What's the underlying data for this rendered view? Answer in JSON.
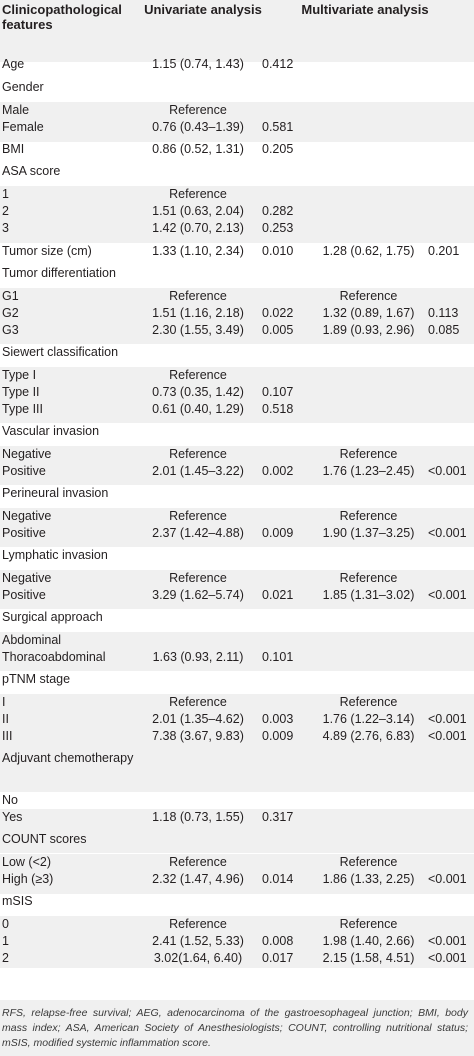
{
  "header": {
    "feature": "Clinicopathological features",
    "univariate": "Univariate analysis",
    "multivariate": "Multivariate analysis"
  },
  "rows": [
    {
      "label": "Age",
      "or1": "1.15 (0.74, 1.43)",
      "p1": "0.412",
      "or2": "",
      "p2": ""
    },
    {
      "label": "Gender",
      "or1": "",
      "p1": "",
      "or2": "",
      "p2": ""
    },
    {
      "label": "Male",
      "or1": "Reference",
      "p1": "",
      "or2": "",
      "p2": ""
    },
    {
      "label": "Female",
      "or1": "0.76 (0.43–1.39)",
      "p1": "0.581",
      "or2": "",
      "p2": ""
    },
    {
      "label": "BMI",
      "or1": "0.86 (0.52, 1.31)",
      "p1": "0.205",
      "or2": "",
      "p2": ""
    },
    {
      "label": "ASA score",
      "or1": "",
      "p1": "",
      "or2": "",
      "p2": ""
    },
    {
      "label": "1",
      "or1": "Reference",
      "p1": "",
      "or2": "",
      "p2": ""
    },
    {
      "label": "2",
      "or1": "1.51 (0.63, 2.04)",
      "p1": "0.282",
      "or2": "",
      "p2": ""
    },
    {
      "label": "3",
      "or1": "1.42 (0.70, 2.13)",
      "p1": "0.253",
      "or2": "",
      "p2": ""
    },
    {
      "label": "Tumor size (cm)",
      "or1": "1.33 (1.10, 2.34)",
      "p1": "0.010",
      "or2": "1.28 (0.62, 1.75)",
      "p2": "0.201"
    },
    {
      "label": "Tumor differentiation",
      "or1": "",
      "p1": "",
      "or2": "",
      "p2": ""
    },
    {
      "label": "G1",
      "or1": "Reference",
      "p1": "",
      "or2": "Reference",
      "p2": ""
    },
    {
      "label": "G2",
      "or1": "1.51 (1.16, 2.18)",
      "p1": "0.022",
      "or2": "1.32 (0.89, 1.67)",
      "p2": "0.113"
    },
    {
      "label": "G3",
      "or1": "2.30 (1.55, 3.49)",
      "p1": "0.005",
      "or2": "1.89 (0.93, 2.96)",
      "p2": "0.085"
    },
    {
      "label": "Siewert classification",
      "or1": "",
      "p1": "",
      "or2": "",
      "p2": ""
    },
    {
      "label": "Type I",
      "or1": "Reference",
      "p1": "",
      "or2": "",
      "p2": ""
    },
    {
      "label": "Type II",
      "or1": "0.73 (0.35, 1.42)",
      "p1": "0.107",
      "or2": "",
      "p2": ""
    },
    {
      "label": "Type III",
      "or1": "0.61 (0.40, 1.29)",
      "p1": "0.518",
      "or2": "",
      "p2": ""
    },
    {
      "label": "Vascular invasion",
      "or1": "",
      "p1": "",
      "or2": "",
      "p2": ""
    },
    {
      "label": "Negative",
      "or1": "Reference",
      "p1": "",
      "or2": "Reference",
      "p2": ""
    },
    {
      "label": "Positive",
      "or1": "2.01 (1.45–3.22)",
      "p1": "0.002",
      "or2": "1.76 (1.23–2.45)",
      "p2": "<0.001"
    },
    {
      "label": "Perineural invasion",
      "or1": "",
      "p1": "",
      "or2": "",
      "p2": ""
    },
    {
      "label": "Negative",
      "or1": "Reference",
      "p1": "",
      "or2": "Reference",
      "p2": ""
    },
    {
      "label": "Positive",
      "or1": "2.37 (1.42–4.88)",
      "p1": "0.009",
      "or2": "1.90 (1.37–3.25)",
      "p2": "<0.001"
    },
    {
      "label": "Lymphatic invasion",
      "or1": "",
      "p1": "",
      "or2": "",
      "p2": ""
    },
    {
      "label": "Negative",
      "or1": "Reference",
      "p1": "",
      "or2": "Reference",
      "p2": ""
    },
    {
      "label": "Positive",
      "or1": "3.29 (1.62–5.74)",
      "p1": "0.021",
      "or2": "1.85 (1.31–3.02)",
      "p2": "<0.001"
    },
    {
      "label": "Surgical approach",
      "or1": "",
      "p1": "",
      "or2": "",
      "p2": ""
    },
    {
      "label": "Abdominal",
      "or1": "",
      "p1": "",
      "or2": "",
      "p2": ""
    },
    {
      "label": "Thoracoabdominal",
      "or1": "1.63 (0.93, 2.11)",
      "p1": "0.101",
      "or2": "",
      "p2": ""
    },
    {
      "label": "pTNM stage",
      "or1": "",
      "p1": "",
      "or2": "",
      "p2": ""
    },
    {
      "label": "I",
      "or1": "Reference",
      "p1": "",
      "or2": "Reference",
      "p2": ""
    },
    {
      "label": "II",
      "or1": "2.01 (1.35–4.62)",
      "p1": "0.003",
      "or2": "1.76 (1.22–3.14)",
      "p2": "<0.001"
    },
    {
      "label": "III",
      "or1": "7.38 (3.67, 9.83)",
      "p1": "0.009",
      "or2": "4.89 (2.76, 6.83)",
      "p2": "<0.001"
    },
    {
      "label": "Adjuvant chemotherapy",
      "or1": "",
      "p1": "",
      "or2": "",
      "p2": ""
    },
    {
      "label": "No",
      "or1": "",
      "p1": "",
      "or2": "",
      "p2": ""
    },
    {
      "label": "Yes",
      "or1": "1.18 (0.73, 1.55)",
      "p1": "0.317",
      "or2": "",
      "p2": ""
    },
    {
      "label": "COUNT scores",
      "or1": "",
      "p1": "",
      "or2": "",
      "p2": ""
    },
    {
      "label": "Low (<2)",
      "or1": "Reference",
      "p1": "",
      "or2": "Reference",
      "p2": ""
    },
    {
      "label": "High (≥3)",
      "or1": "2.32 (1.47, 4.96)",
      "p1": "0.014",
      "or2": "1.86 (1.33, 2.25)",
      "p2": "<0.001"
    },
    {
      "label": "mSIS",
      "or1": "",
      "p1": "",
      "or2": "",
      "p2": ""
    },
    {
      "label": "0",
      "or1": "Reference",
      "p1": "",
      "or2": "Reference",
      "p2": ""
    },
    {
      "label": "1",
      "or1": "2.41 (1.52, 5.33)",
      "p1": "0.008",
      "or2": "1.98 (1.40, 2.66)",
      "p2": "<0.001"
    },
    {
      "label": "2",
      "or1": "3.02(1.64, 6.40)",
      "p1": "0.017",
      "or2": "2.15 (1.58, 4.51)",
      "p2": "<0.001"
    }
  ],
  "footnote": "RFS, relapse-free survival; AEG, adenocarcinoma of the gastroesophageal junction; BMI, body mass index; ASA, American Society of Anesthesiologists; COUNT, controlling nutritional status; mSIS, modified systemic inflammation score."
}
